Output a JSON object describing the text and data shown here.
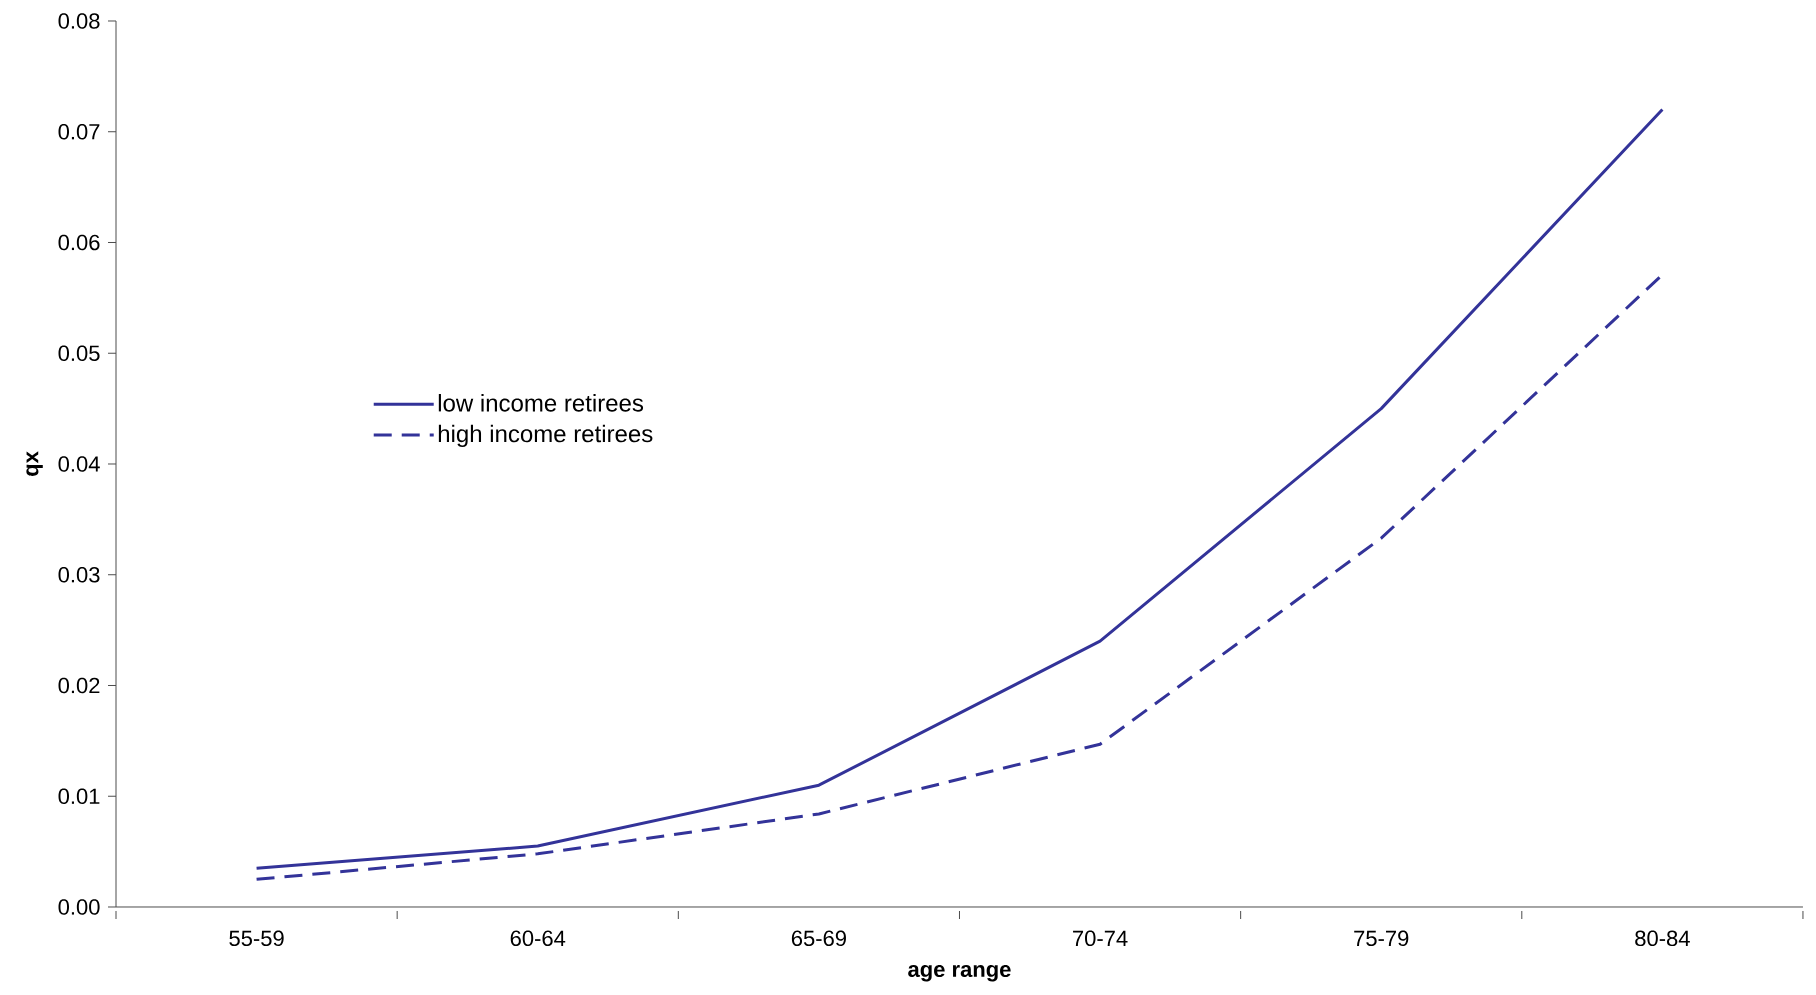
{
  "chart_data": {
    "type": "line",
    "xlabel": "age range",
    "ylabel": "qx",
    "categories": [
      "55-59",
      "60-64",
      "65-69",
      "70-74",
      "75-79",
      "80-84"
    ],
    "series": [
      {
        "name": "low income retirees",
        "color": "#333399",
        "line_style": "solid",
        "values": [
          0.0035,
          0.0055,
          0.011,
          0.024,
          0.045,
          0.072
        ]
      },
      {
        "name": "high income retirees",
        "color": "#333399",
        "line_style": "dashed",
        "values": [
          0.0025,
          0.0048,
          0.0084,
          0.0147,
          0.0333,
          0.0571
        ]
      }
    ],
    "ylim": [
      0,
      0.08
    ],
    "yticks": [
      {
        "value": 0,
        "label": "0.00"
      },
      0.01,
      0.02,
      0.03,
      0.04,
      0.05,
      0.06,
      0.07,
      0.08
    ],
    "grid": false,
    "legend": "left",
    "marker": "none"
  }
}
